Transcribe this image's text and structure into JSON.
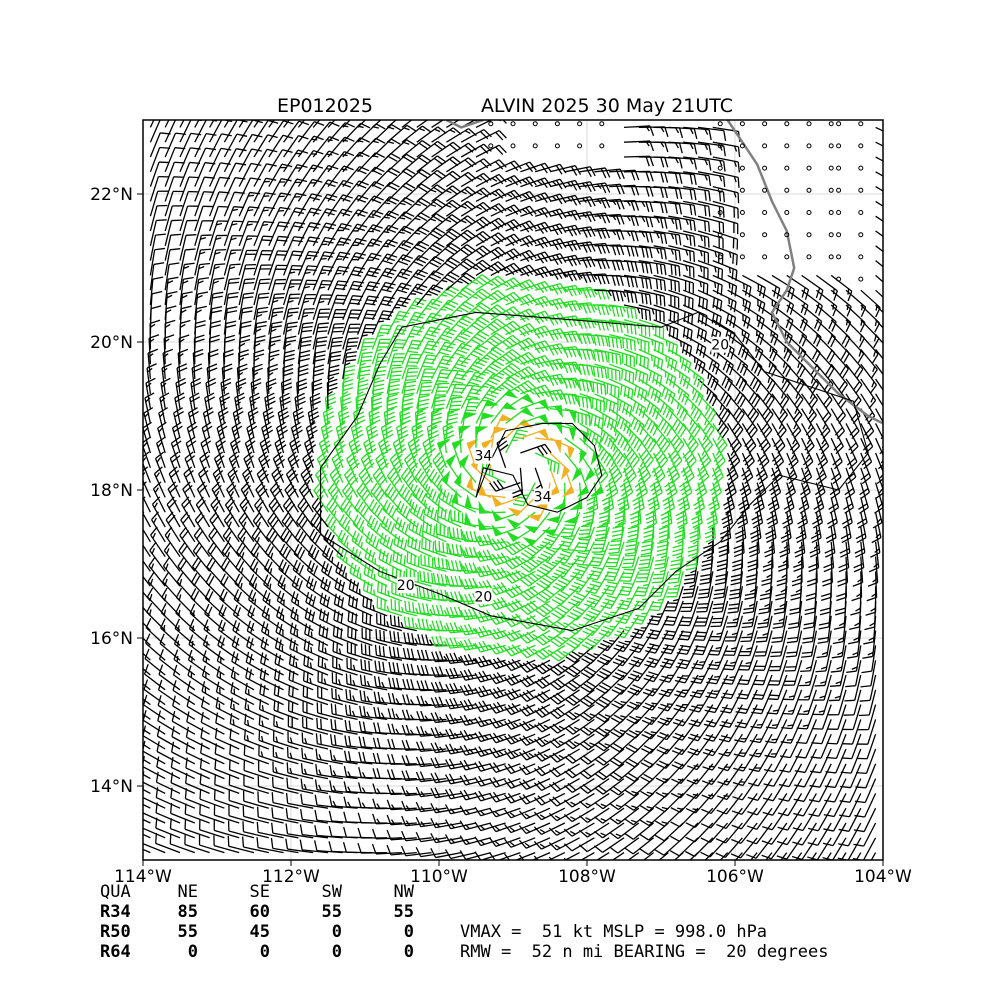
{
  "chart_data": {
    "type": "wind-barb-map",
    "title_left": "EP012025",
    "title_right": "ALVIN 2025 30 May 21UTC",
    "xlim": [
      -114,
      -104
    ],
    "ylim": [
      13,
      23
    ],
    "xticks": [
      {
        "value": -114,
        "label": "114°W"
      },
      {
        "value": -112,
        "label": "112°W"
      },
      {
        "value": -110,
        "label": "110°W"
      },
      {
        "value": -108,
        "label": "108°W"
      },
      {
        "value": -106,
        "label": "106°W"
      },
      {
        "value": -104,
        "label": "104°W"
      }
    ],
    "yticks": [
      {
        "value": 14,
        "label": "14°N"
      },
      {
        "value": 16,
        "label": "16°N"
      },
      {
        "value": 18,
        "label": "18°N"
      },
      {
        "value": 20,
        "label": "20°N"
      },
      {
        "value": 22,
        "label": "22°N"
      }
    ],
    "grid": true,
    "storm_center": {
      "lon": -108.9,
      "lat": 18.3
    },
    "barb_colors": {
      "below34": "#000000",
      "r34": "#22dd22",
      "r50": "#f0b020"
    },
    "coast_color": "#808080",
    "contours": [
      {
        "label": "34",
        "label_at": [
          [
            -109.4,
            18.45
          ],
          [
            -108.6,
            17.9
          ]
        ],
        "points": [
          [
            -109.1,
            18.8
          ],
          [
            -108.6,
            18.9
          ],
          [
            -108.2,
            18.9
          ],
          [
            -107.9,
            18.6
          ],
          [
            -107.8,
            18.2
          ],
          [
            -108.0,
            17.9
          ],
          [
            -108.4,
            17.7
          ],
          [
            -108.8,
            17.8
          ],
          [
            -109.0,
            18.2
          ],
          [
            -109.4,
            18.3
          ],
          [
            -109.5,
            17.9
          ],
          [
            -109.3,
            18.4
          ],
          [
            -109.1,
            18.8
          ]
        ]
      },
      {
        "label": "20",
        "label_at": [
          [
            -110.45,
            16.7
          ],
          [
            -109.4,
            16.55
          ],
          [
            -106.2,
            19.95
          ]
        ],
        "points": [
          [
            -110.5,
            20.2
          ],
          [
            -109.5,
            20.4
          ],
          [
            -108.2,
            20.3
          ],
          [
            -107.0,
            20.2
          ],
          [
            -106.5,
            20.4
          ],
          [
            -106.0,
            20.1
          ],
          [
            -105.6,
            19.6
          ],
          [
            -104.4,
            19.2
          ],
          [
            -104.2,
            18.5
          ],
          [
            -104.6,
            18.0
          ],
          [
            -105.4,
            18.2
          ],
          [
            -105.8,
            17.8
          ],
          [
            -106.2,
            17.3
          ],
          [
            -106.8,
            16.9
          ],
          [
            -107.3,
            16.4
          ],
          [
            -108.2,
            16.1
          ],
          [
            -109.3,
            16.3
          ],
          [
            -110.0,
            16.6
          ],
          [
            -110.8,
            16.9
          ],
          [
            -111.6,
            17.4
          ],
          [
            -111.6,
            18.3
          ],
          [
            -111.1,
            19.0
          ],
          [
            -110.8,
            19.7
          ],
          [
            -110.5,
            20.2
          ]
        ]
      }
    ],
    "coastline": [
      [
        [
          -106.1,
          23.0
        ],
        [
          -105.9,
          22.7
        ],
        [
          -105.7,
          22.4
        ],
        [
          -105.5,
          21.9
        ],
        [
          -105.3,
          21.5
        ],
        [
          -105.2,
          21.0
        ],
        [
          -105.3,
          20.7
        ],
        [
          -105.5,
          20.4
        ],
        [
          -105.3,
          20.0
        ],
        [
          -105.0,
          19.7
        ],
        [
          -104.6,
          19.3
        ],
        [
          -104.2,
          19.0
        ],
        [
          -104.0,
          18.9
        ]
      ],
      [
        [
          -109.4,
          23.0
        ],
        [
          -109.7,
          22.9
        ],
        [
          -109.9,
          23.0
        ]
      ]
    ],
    "calm_regions": [
      {
        "lon_min": -109.3,
        "lon_max": -107.6,
        "lat_min": 22.45,
        "lat_max": 23.0,
        "step": 0.3
      },
      {
        "lon_min": -104.6,
        "lon_max": -104.2,
        "lat_min": 20.7,
        "lat_max": 23.0,
        "step": 0.3
      },
      {
        "lon_min": -106.2,
        "lon_max": -104.6,
        "lat_min": 20.9,
        "lat_max": 23.0,
        "step": 0.3
      }
    ]
  },
  "radii_table": {
    "header": [
      "QUA",
      "NE",
      "SE",
      "SW",
      "NW"
    ],
    "rows": [
      [
        "R34",
        "85",
        "60",
        "55",
        "55"
      ],
      [
        "R50",
        "55",
        "45",
        "0",
        "0"
      ],
      [
        "R64",
        "0",
        "0",
        "0",
        "0"
      ]
    ]
  },
  "summary": {
    "line1": "VMAX =  51 kt MSLP = 998.0 hPa",
    "line2": "RMW =  52 n mi BEARING =  20 degrees"
  }
}
